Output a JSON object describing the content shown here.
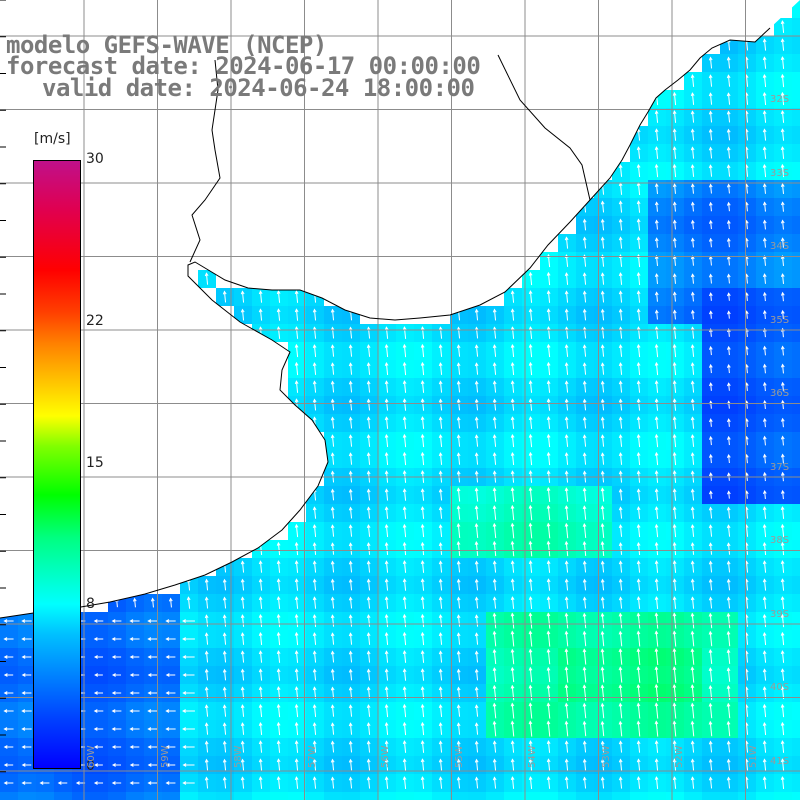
{
  "title": {
    "line1": "modelo GEFS-WAVE (NCEP)",
    "line2": "forecast date: 2024-06-17 00:00:00",
    "line3": "valid date: 2024-06-24 18:00:00"
  },
  "colorbar": {
    "unit": "[m/s]",
    "ticks": [
      {
        "label": "30",
        "value": 30
      },
      {
        "label": "22",
        "value": 22
      },
      {
        "label": "15",
        "value": 15
      },
      {
        "label": "8",
        "value": 8
      },
      {
        "label": "0",
        "value": 0
      }
    ],
    "min": 0,
    "max": 30
  },
  "lat_labels": [
    "32S",
    "33S",
    "34S",
    "35S",
    "36S",
    "37S",
    "38S",
    "39S",
    "40S",
    "41S"
  ],
  "lon_labels": [
    "60W",
    "59W",
    "58W",
    "57W",
    "56W",
    "55W",
    "54W",
    "53W",
    "52W",
    "51W"
  ],
  "colors": {
    "land": "#ffffff",
    "grid": "#8c8c8c",
    "coast": "#000000",
    "arrow": "#ffffff",
    "title": "#7a7a7a"
  }
}
